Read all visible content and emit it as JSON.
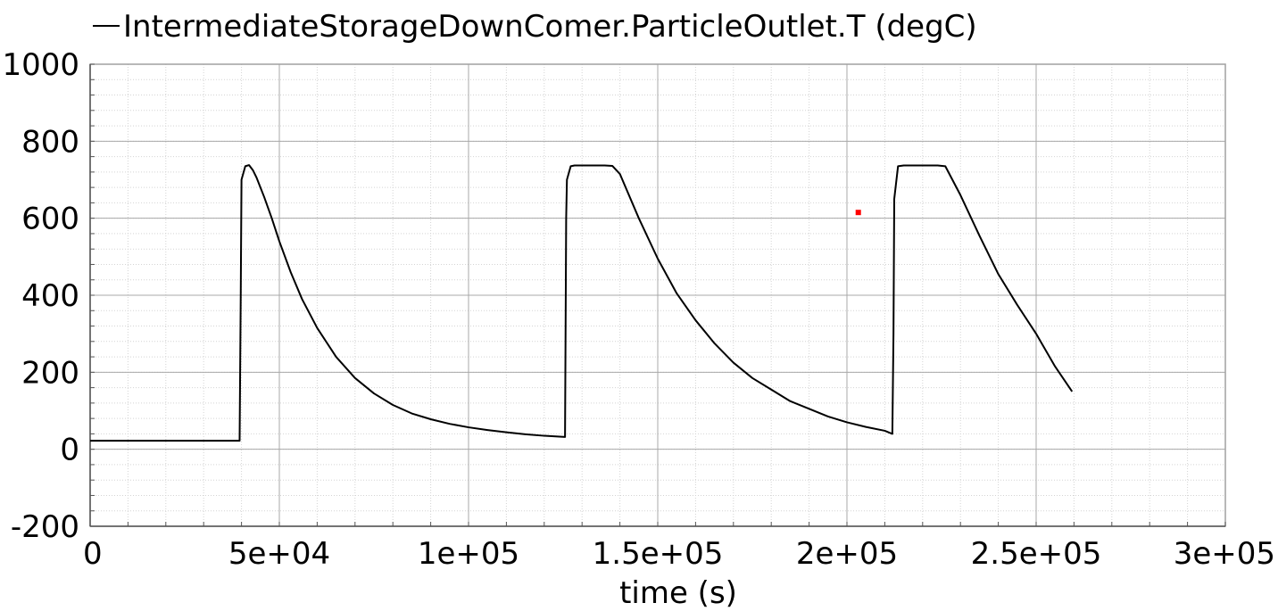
{
  "chart_data": {
    "type": "line",
    "title": "",
    "xlabel": "time (s)",
    "ylabel": "",
    "xlim": [
      0,
      300000
    ],
    "ylim": [
      -200,
      1000
    ],
    "x_ticks": [
      0,
      50000,
      100000,
      150000,
      200000,
      250000,
      300000
    ],
    "x_tick_labels": [
      "0",
      "5e+04",
      "1e+05",
      "1.5e+05",
      "2e+05",
      "2.5e+05",
      "3e+05"
    ],
    "y_ticks": [
      -200,
      0,
      200,
      400,
      600,
      800,
      1000
    ],
    "y_tick_labels": [
      "-200",
      "0",
      "200",
      "400",
      "600",
      "800",
      "1000"
    ],
    "grid": true,
    "legend_position": "top",
    "series": [
      {
        "name": "IntermediateStorageDownComer.ParticleOutlet.T (degC)",
        "color": "#000000",
        "x": [
          0,
          39500,
          39800,
          40000,
          41000,
          42000,
          43000,
          44000,
          46000,
          48000,
          50000,
          53000,
          56000,
          60000,
          65000,
          70000,
          75000,
          80000,
          85000,
          90000,
          95000,
          100000,
          105000,
          110000,
          115000,
          120000,
          125500,
          125800,
          126000,
          127000,
          128000,
          130000,
          133000,
          136000,
          138000,
          140000,
          145000,
          150000,
          155000,
          160000,
          165000,
          170000,
          175000,
          180000,
          185000,
          190000,
          195000,
          200000,
          205000,
          210000,
          212000,
          212300,
          212500,
          213500,
          215000,
          220000,
          224000,
          226000,
          230000,
          235000,
          240000,
          245000,
          250000,
          255000,
          259500
        ],
        "y": [
          22,
          22,
          400,
          700,
          735,
          738,
          725,
          705,
          655,
          600,
          540,
          460,
          390,
          315,
          240,
          185,
          145,
          115,
          93,
          78,
          66,
          57,
          50,
          44,
          39,
          35,
          32,
          600,
          700,
          735,
          737,
          737,
          737,
          737,
          736,
          715,
          600,
          495,
          405,
          335,
          275,
          225,
          185,
          155,
          125,
          105,
          85,
          70,
          58,
          48,
          40,
          300,
          650,
          735,
          737,
          737,
          737,
          735,
          660,
          555,
          455,
          375,
          300,
          215,
          150
        ]
      }
    ],
    "annotations": [
      {
        "type": "marker",
        "color": "#ff0000",
        "x": 203000,
        "y": 615
      }
    ]
  }
}
